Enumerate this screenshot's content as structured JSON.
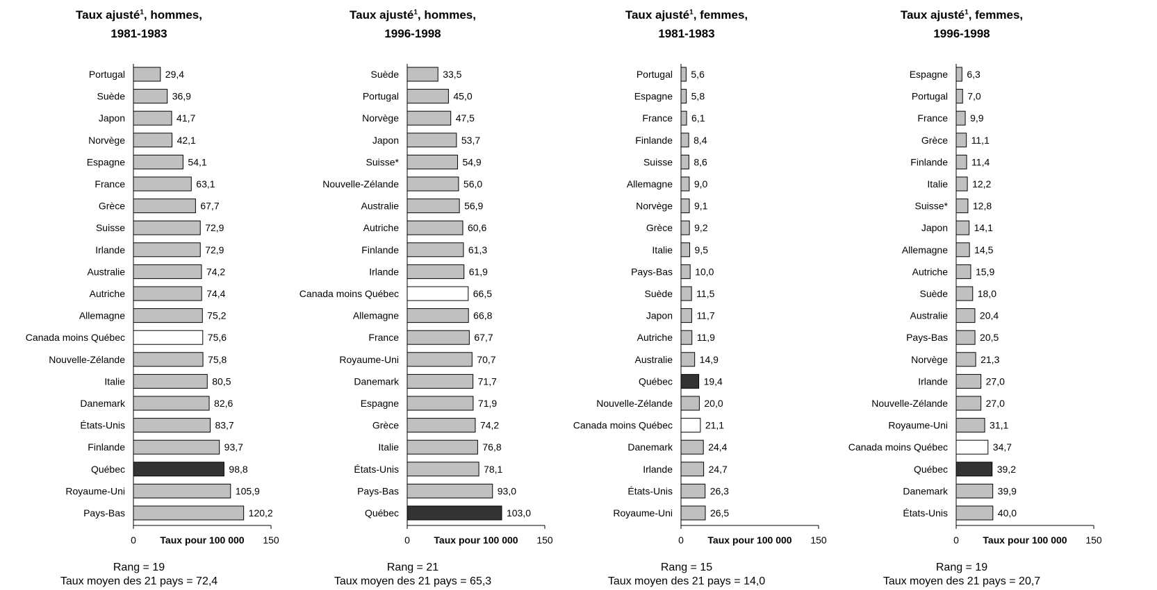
{
  "chart_data": [
    {
      "type": "bar",
      "orientation": "horizontal",
      "title": {
        "pre": "Taux ajusté",
        "sup": "1",
        "post": ", hommes,",
        "line2": "1981-1983"
      },
      "xlabel": "Taux pour 100 000",
      "xlim": [
        0,
        150
      ],
      "xticks": [
        "0",
        "150"
      ],
      "categories": [
        "Portugal",
        "Suède",
        "Japon",
        "Norvège",
        "Espagne",
        "France",
        "Grèce",
        "Suisse",
        "Irlande",
        "Australie",
        "Autriche",
        "Allemagne",
        "Canada moins Québec",
        "Nouvelle-Zélande",
        "Italie",
        "Danemark",
        "États-Unis",
        "Finlande",
        "Québec",
        "Royaume-Uni",
        "Pays-Bas"
      ],
      "values": [
        29.4,
        36.9,
        41.7,
        42.1,
        54.1,
        63.1,
        67.7,
        72.9,
        72.9,
        74.2,
        74.4,
        75.2,
        75.6,
        75.8,
        80.5,
        82.6,
        83.7,
        93.7,
        98.8,
        105.9,
        120.2
      ],
      "labels": [
        "29,4",
        "36,9",
        "41,7",
        "42,1",
        "54,1",
        "63,1",
        "67,7",
        "72,9",
        "72,9",
        "74,2",
        "74,4",
        "75,2",
        "75,6",
        "75,8",
        "80,5",
        "82,6",
        "83,7",
        "93,7",
        "98,8",
        "105,9",
        "120,2"
      ],
      "footer": [
        "Rang = 19",
        "Taux moyen des 21 pays = 72,4"
      ]
    },
    {
      "type": "bar",
      "orientation": "horizontal",
      "title": {
        "pre": "Taux ajusté",
        "sup": "1",
        "post": ", hommes,",
        "line2": "1996-1998"
      },
      "xlabel": "Taux pour 100 000",
      "xlim": [
        0,
        150
      ],
      "xticks": [
        "0",
        "150"
      ],
      "categories": [
        "Suède",
        "Portugal",
        "Norvège",
        "Japon",
        "Suisse*",
        "Nouvelle-Zélande",
        "Australie",
        "Autriche",
        "Finlande",
        "Irlande",
        "Canada moins Québec",
        "Allemagne",
        "France",
        "Royaume-Uni",
        "Danemark",
        "Espagne",
        "Grèce",
        "Italie",
        "États-Unis",
        "Pays-Bas",
        "Québec"
      ],
      "values": [
        33.5,
        45.0,
        47.5,
        53.7,
        54.9,
        56.0,
        56.9,
        60.6,
        61.3,
        61.9,
        66.5,
        66.8,
        67.7,
        70.7,
        71.7,
        71.9,
        74.2,
        76.8,
        78.1,
        93.0,
        103.0
      ],
      "labels": [
        "33,5",
        "45,0",
        "47,5",
        "53,7",
        "54,9",
        "56,0",
        "56,9",
        "60,6",
        "61,3",
        "61,9",
        "66,5",
        "66,8",
        "67,7",
        "70,7",
        "71,7",
        "71,9",
        "74,2",
        "76,8",
        "78,1",
        "93,0",
        "103,0"
      ],
      "footer": [
        "Rang = 21",
        "Taux moyen des 21 pays = 65,3"
      ]
    },
    {
      "type": "bar",
      "orientation": "horizontal",
      "title": {
        "pre": "Taux ajusté",
        "sup": "1",
        "post": ", femmes,",
        "line2": "1981-1983"
      },
      "xlabel": "Taux pour 100 000",
      "xlim": [
        0,
        150
      ],
      "xticks": [
        "0",
        "150"
      ],
      "categories": [
        "Portugal",
        "Espagne",
        "France",
        "Finlande",
        "Suisse",
        "Allemagne",
        "Norvège",
        "Grèce",
        "Italie",
        "Pays-Bas",
        "Suède",
        "Japon",
        "Autriche",
        "Australie",
        "Québec",
        "Nouvelle-Zélande",
        "Canada moins Québec",
        "Danemark",
        "Irlande",
        "États-Unis",
        "Royaume-Uni"
      ],
      "values": [
        5.6,
        5.8,
        6.1,
        8.4,
        8.6,
        9.0,
        9.1,
        9.2,
        9.5,
        10.0,
        11.5,
        11.7,
        11.9,
        14.9,
        19.4,
        20.0,
        21.1,
        24.4,
        24.7,
        26.3,
        26.5
      ],
      "labels": [
        "5,6",
        "5,8",
        "6,1",
        "8,4",
        "8,6",
        "9,0",
        "9,1",
        "9,2",
        "9,5",
        "10,0",
        "11,5",
        "11,7",
        "11,9",
        "14,9",
        "19,4",
        "20,0",
        "21,1",
        "24,4",
        "24,7",
        "26,3",
        "26,5"
      ],
      "footer": [
        "Rang = 15",
        "Taux moyen des 21 pays = 14,0"
      ]
    },
    {
      "type": "bar",
      "orientation": "horizontal",
      "title": {
        "pre": "Taux ajusté",
        "sup": "1",
        "post": ", femmes,",
        "line2": "1996-1998"
      },
      "xlabel": "Taux pour 100 000",
      "xlim": [
        0,
        150
      ],
      "xticks": [
        "0",
        "150"
      ],
      "categories": [
        "Espagne",
        "Portugal",
        "France",
        "Grèce",
        "Finlande",
        "Italie",
        "Suisse*",
        "Japon",
        "Allemagne",
        "Autriche",
        "Suède",
        "Australie",
        "Pays-Bas",
        "Norvège",
        "Irlande",
        "Nouvelle-Zélande",
        "Royaume-Uni",
        "Canada moins Québec",
        "Québec",
        "Danemark",
        "États-Unis"
      ],
      "values": [
        6.3,
        7.0,
        9.9,
        11.1,
        11.4,
        12.2,
        12.8,
        14.1,
        14.5,
        15.9,
        18.0,
        20.4,
        20.5,
        21.3,
        27.0,
        27.0,
        31.1,
        34.7,
        39.2,
        39.9,
        40.0
      ],
      "labels": [
        "6,3",
        "7,0",
        "9,9",
        "11,1",
        "11,4",
        "12,2",
        "12,8",
        "14,1",
        "14,5",
        "15,9",
        "18,0",
        "20,4",
        "20,5",
        "21,3",
        "27,0",
        "27,0",
        "31,1",
        "34,7",
        "39,2",
        "39,9",
        "40,0"
      ],
      "footer": [
        "Rang = 19",
        "Taux moyen des 21 pays = 20,7"
      ]
    }
  ],
  "colors": {
    "default_bar": "#c0c0c0",
    "highlight_quebec": "#333333",
    "highlight_canada": "#ffffff",
    "bar_stroke": "#000000"
  },
  "highlights": {
    "quebec": "Québec",
    "canada": "Canada moins Québec"
  }
}
